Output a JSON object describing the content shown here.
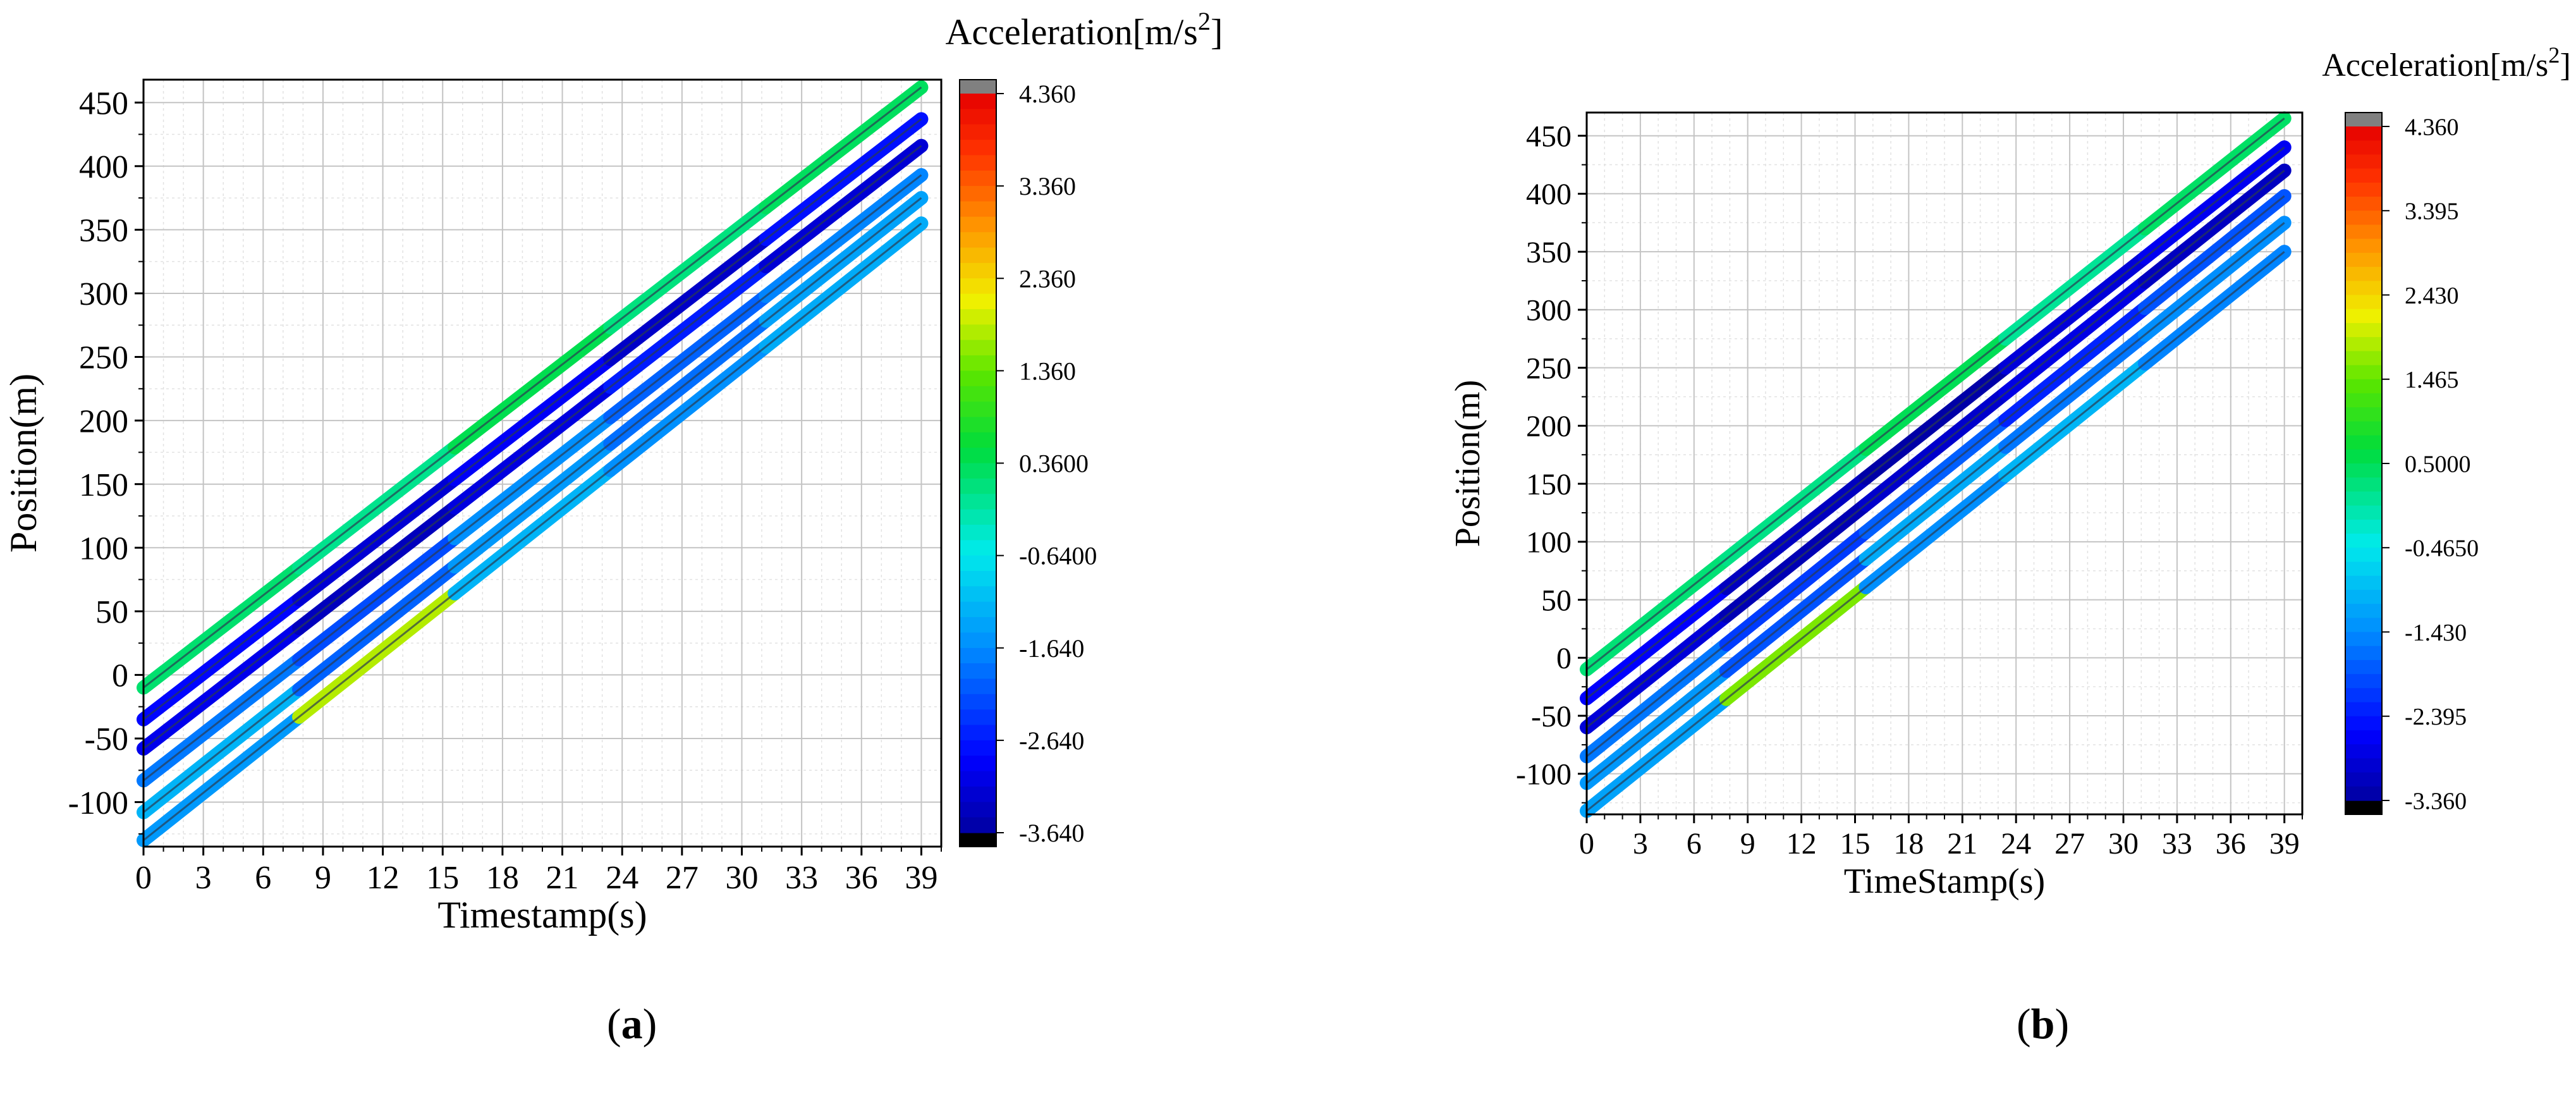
{
  "chart_data": [
    {
      "panel": "a",
      "type": "line",
      "xlabel": "Timestamp(s)",
      "ylabel": "Position(m)",
      "xlim": [
        0,
        40
      ],
      "ylim": [
        -135,
        468
      ],
      "x_ticks": [
        0,
        3,
        6,
        9,
        12,
        15,
        18,
        21,
        24,
        27,
        30,
        33,
        36,
        39
      ],
      "y_ticks": [
        -100,
        -50,
        0,
        50,
        100,
        150,
        200,
        250,
        300,
        350,
        400,
        450
      ],
      "grid": true,
      "colorbar": {
        "title": "Acceleration[m/s",
        "title_sup": "2",
        "title_end": "]",
        "min": -3.64,
        "max": 4.36,
        "tick_labels": [
          "4.360",
          "3.360",
          "2.360",
          "1.360",
          "0.3600",
          "-0.6400",
          "-1.640",
          "-2.640",
          "-3.640"
        ],
        "tick_values": [
          4.36,
          3.36,
          2.36,
          1.36,
          0.36,
          -0.64,
          -1.64,
          -2.64,
          -3.64
        ]
      },
      "series": [
        {
          "x": [
            0,
            39
          ],
          "y": [
            -10,
            462
          ],
          "acceleration": [
            0.2,
            0.0,
            0.4,
            0.1,
            0.3
          ]
        },
        {
          "x": [
            0,
            39
          ],
          "y": [
            -35,
            437
          ],
          "acceleration": [
            -2.8,
            -3.2,
            -2.9,
            -3.3,
            -2.7
          ]
        },
        {
          "x": [
            0,
            39
          ],
          "y": [
            -58,
            416
          ],
          "acceleration": [
            -3.0,
            -3.4,
            -3.1,
            -2.6,
            -3.2
          ]
        },
        {
          "x": [
            0,
            39
          ],
          "y": [
            -83,
            393
          ],
          "acceleration": [
            -1.8,
            -2.2,
            -1.6,
            -2.0,
            -1.7
          ]
        },
        {
          "x": [
            0,
            39
          ],
          "y": [
            -108,
            375
          ],
          "acceleration": [
            -1.2,
            -2.0,
            -1.5,
            -1.9,
            -1.4
          ]
        },
        {
          "x": [
            0,
            39
          ],
          "y": [
            -130,
            355
          ],
          "acceleration": [
            -1.5,
            1.8,
            -1.2,
            -1.6,
            -1.3
          ]
        }
      ]
    },
    {
      "panel": "b",
      "type": "line",
      "xlabel": "TimeStamp(s)",
      "ylabel": "Position(m)",
      "xlim": [
        0,
        40
      ],
      "ylim": [
        -135,
        470
      ],
      "x_ticks": [
        0,
        3,
        6,
        9,
        12,
        15,
        18,
        21,
        24,
        27,
        30,
        33,
        36,
        39
      ],
      "y_ticks": [
        -100,
        -50,
        0,
        50,
        100,
        150,
        200,
        250,
        300,
        350,
        400,
        450
      ],
      "grid": true,
      "colorbar": {
        "title": "Acceleration[m/s",
        "title_sup": "2",
        "title_end": "]",
        "min": -3.36,
        "max": 4.36,
        "tick_labels": [
          "4.360",
          "3.395",
          "2.430",
          "1.465",
          "0.5000",
          "-0.4650",
          "-1.430",
          "-2.395",
          "-3.360"
        ],
        "tick_values": [
          4.36,
          3.395,
          2.43,
          1.465,
          0.5,
          -0.465,
          -1.43,
          -2.395,
          -3.36
        ]
      },
      "series": [
        {
          "x": [
            0,
            39
          ],
          "y": [
            -10,
            465
          ],
          "acceleration": [
            0.3,
            0.2,
            0.5,
            0.1,
            0.4
          ]
        },
        {
          "x": [
            0,
            39
          ],
          "y": [
            -35,
            440
          ],
          "acceleration": [
            -2.6,
            -3.1,
            -3.3,
            -2.9,
            -2.7
          ]
        },
        {
          "x": [
            0,
            39
          ],
          "y": [
            -60,
            420
          ],
          "acceleration": [
            -2.9,
            -3.2,
            -3.0,
            -2.8,
            -3.1
          ]
        },
        {
          "x": [
            0,
            39
          ],
          "y": [
            -85,
            398
          ],
          "acceleration": [
            -1.6,
            -2.1,
            -1.8,
            -2.3,
            -1.9
          ]
        },
        {
          "x": [
            0,
            39
          ],
          "y": [
            -108,
            375
          ],
          "acceleration": [
            -1.3,
            -1.9,
            -1.1,
            -1.6,
            -1.4
          ]
        },
        {
          "x": [
            0,
            39
          ],
          "y": [
            -132,
            350
          ],
          "acceleration": [
            -1.2,
            1.6,
            -1.4,
            -1.0,
            -1.5
          ]
        }
      ]
    }
  ],
  "captions": {
    "a": {
      "open": "(",
      "letter": "a",
      "close": ")"
    },
    "b": {
      "open": "(",
      "letter": "b",
      "close": ")"
    }
  }
}
